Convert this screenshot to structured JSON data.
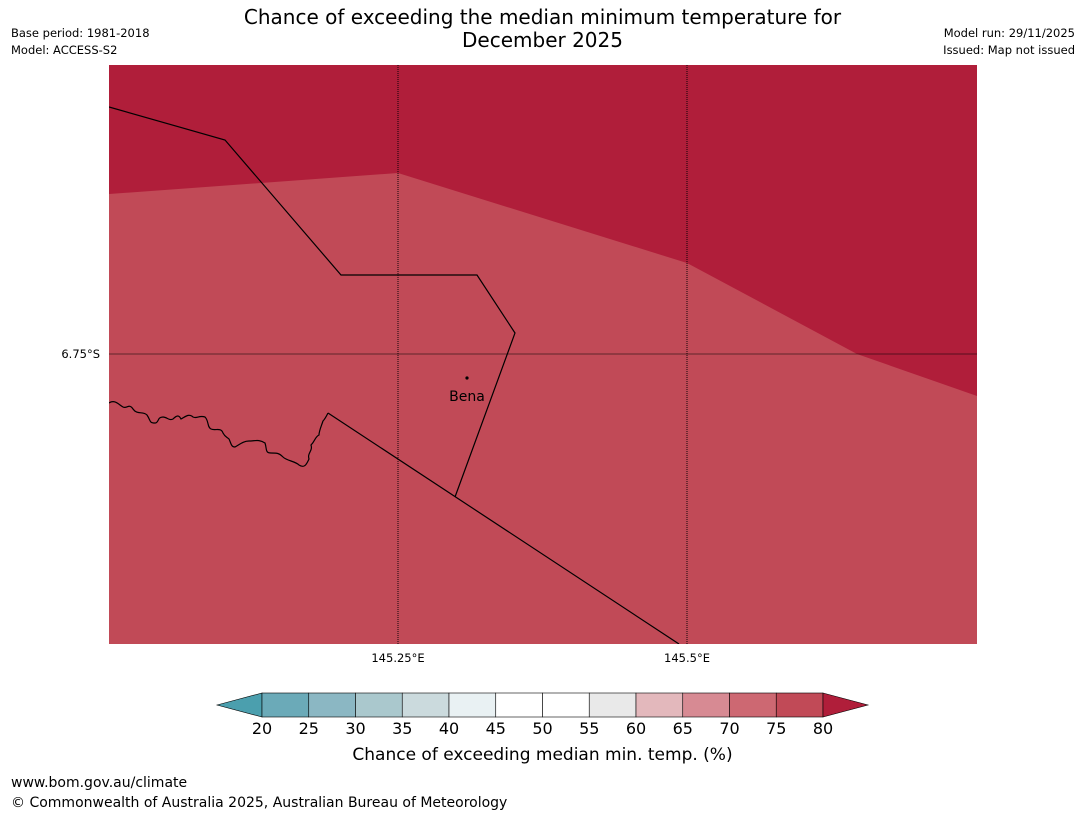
{
  "header": {
    "base_period": "Base period: 1981-2018",
    "model": "Model: ACCESS-S2",
    "title_line1": "Chance of exceeding the median minimum temperature for",
    "title_line2": "December 2025",
    "model_run": "Model run: 29/11/2025",
    "issued": "Issued: Map not issued"
  },
  "map": {
    "lat_label": "6.75°S",
    "lon_labels": [
      "145.25°E",
      "145.5°E"
    ],
    "place": {
      "name": "Bena"
    },
    "regions": [
      {
        "category": "80+",
        "color": "#B01E3A"
      },
      {
        "category": "75-80",
        "color": "#C14A57"
      }
    ]
  },
  "colorbar": {
    "ticks": [
      "20",
      "25",
      "30",
      "35",
      "40",
      "45",
      "50",
      "55",
      "60",
      "65",
      "70",
      "75",
      "80"
    ],
    "low_extension_color": "#4B9FAE",
    "high_extension_color": "#B01E3A",
    "colors": [
      "#6BAAB8",
      "#8BB7C3",
      "#AAC8CD",
      "#CBDADD",
      "#E9F1F3",
      "#FFFFFF",
      "#FFFFFF",
      "#E9E9E9",
      "#E3B8BC",
      "#D78A93",
      "#CD6872",
      "#C14A57"
    ],
    "label": "Chance of exceeding median min. temp. (%)"
  },
  "footer": {
    "url": "www.bom.gov.au/climate",
    "copyright": "© Commonwealth of Australia 2025, Australian Bureau of Meteorology"
  }
}
